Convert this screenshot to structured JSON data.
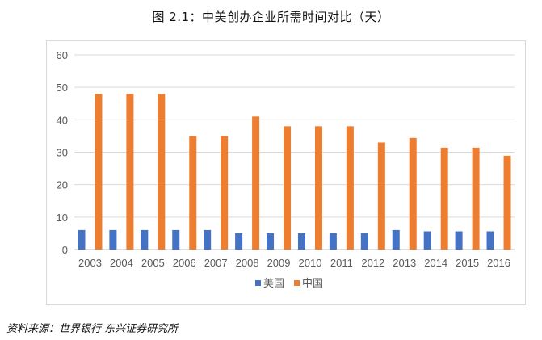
{
  "title": "图 2.1：中美创办企业所需时间对比（天）",
  "source": "资料来源：世界银行 东兴证券研究所",
  "colors": {
    "us": "#4472C4",
    "cn": "#ED7D31",
    "grid": "#D9D9D9",
    "axis": "#BFBFBF"
  },
  "chart_data": {
    "type": "bar",
    "title": "中美创办企业所需时间对比（天）",
    "xlabel": "",
    "ylabel": "",
    "ylim": [
      0,
      60
    ],
    "yticks": [
      0,
      10,
      20,
      30,
      40,
      50,
      60
    ],
    "grid": true,
    "legend_position": "bottom",
    "categories": [
      "2003",
      "2004",
      "2005",
      "2006",
      "2007",
      "2008",
      "2009",
      "2010",
      "2011",
      "2012",
      "2013",
      "2014",
      "2015",
      "2016"
    ],
    "series": [
      {
        "name": "美国",
        "color": "#4472C4",
        "values": [
          6,
          6,
          6,
          6,
          6,
          5,
          5,
          5,
          5,
          5,
          6,
          5.6,
          5.6,
          5.6
        ]
      },
      {
        "name": "中国",
        "color": "#ED7D31",
        "values": [
          48,
          48,
          48,
          35,
          35,
          41,
          38,
          38,
          38,
          33,
          34.4,
          31.4,
          31.4,
          28.9
        ]
      }
    ]
  }
}
